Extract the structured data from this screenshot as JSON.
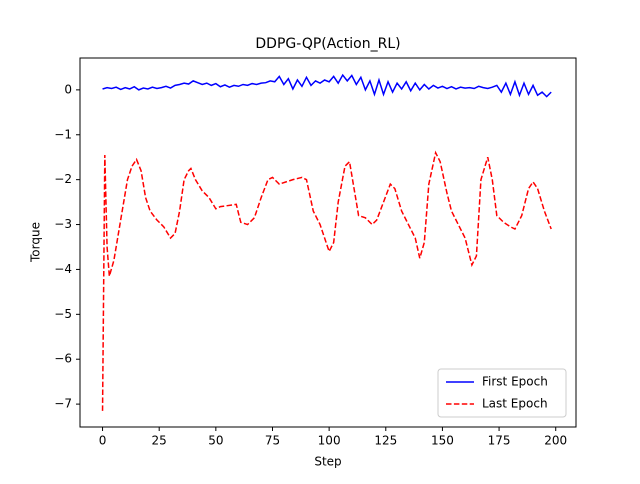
{
  "chart_data": {
    "type": "line",
    "title": "DDPG-QP(Action_RL)",
    "x_label": "Step",
    "y_label": "Torque",
    "xlim": [
      -9.95,
      208.95
    ],
    "ylim": [
      -7.51,
      0.71
    ],
    "xticks": [
      0,
      25,
      50,
      75,
      100,
      125,
      150,
      175,
      200
    ],
    "yticks": [
      0,
      {
        "value": -1,
        "label": "−1"
      },
      {
        "value": -2,
        "label": "−2"
      },
      {
        "value": -3,
        "label": "−3"
      },
      {
        "value": -4,
        "label": "−4"
      },
      {
        "value": -5,
        "label": "−5"
      },
      {
        "value": -6,
        "label": "−6"
      },
      {
        "value": -7,
        "label": "−7"
      }
    ],
    "grid": false,
    "legend": "lower right",
    "series": [
      {
        "name": "First Epoch",
        "color": "#0000ff",
        "dash": "solid",
        "x": [
          0,
          2,
          4,
          6,
          8,
          10,
          12,
          14,
          16,
          18,
          20,
          22,
          24,
          26,
          28,
          30,
          32,
          34,
          36,
          38,
          40,
          42,
          44,
          46,
          48,
          50,
          52,
          54,
          56,
          58,
          60,
          62,
          64,
          66,
          68,
          70,
          72,
          74,
          76,
          78,
          80,
          82,
          84,
          86,
          88,
          90,
          92,
          94,
          96,
          98,
          100,
          102,
          104,
          106,
          108,
          110,
          112,
          114,
          116,
          118,
          120,
          122,
          124,
          126,
          128,
          130,
          132,
          134,
          136,
          138,
          140,
          142,
          144,
          146,
          148,
          150,
          152,
          154,
          156,
          158,
          160,
          162,
          164,
          166,
          168,
          170,
          172,
          174,
          176,
          178,
          180,
          182,
          184,
          186,
          188,
          190,
          192,
          194,
          196,
          198
        ],
        "values": [
          0.02,
          0.05,
          0.03,
          0.06,
          0.01,
          0.05,
          0.02,
          0.07,
          0.0,
          0.04,
          0.02,
          0.06,
          0.03,
          0.05,
          0.08,
          0.04,
          0.1,
          0.12,
          0.15,
          0.13,
          0.2,
          0.16,
          0.12,
          0.15,
          0.1,
          0.14,
          0.07,
          0.11,
          0.06,
          0.1,
          0.08,
          0.12,
          0.1,
          0.14,
          0.12,
          0.15,
          0.16,
          0.2,
          0.18,
          0.3,
          0.12,
          0.25,
          0.02,
          0.22,
          0.08,
          0.28,
          0.1,
          0.2,
          0.15,
          0.22,
          0.18,
          0.3,
          0.15,
          0.33,
          0.2,
          0.32,
          0.12,
          0.28,
          0.0,
          0.2,
          -0.1,
          0.22,
          -0.1,
          0.18,
          -0.05,
          0.15,
          0.02,
          0.18,
          -0.02,
          0.15,
          0.0,
          0.12,
          0.02,
          0.1,
          0.04,
          0.08,
          0.03,
          0.07,
          0.02,
          0.06,
          0.04,
          0.05,
          0.03,
          0.08,
          0.05,
          0.03,
          0.06,
          0.1,
          -0.05,
          0.15,
          -0.1,
          0.18,
          -0.12,
          0.15,
          -0.1,
          0.1,
          -0.12,
          -0.05,
          -0.15,
          -0.05
        ]
      },
      {
        "name": "Last Epoch",
        "color": "#ff0000",
        "dash": "dashed",
        "x": [
          0,
          1,
          2,
          3,
          5,
          8,
          11,
          13,
          15,
          17,
          19,
          21,
          24,
          27,
          30,
          32,
          34,
          36,
          38,
          39,
          41,
          44,
          47,
          50,
          52,
          55,
          59,
          61,
          64,
          67,
          70,
          73,
          75,
          78,
          81,
          84,
          88,
          90,
          93,
          96,
          98,
          100,
          102,
          104,
          107,
          109,
          111,
          113,
          116,
          119,
          121,
          124,
          127,
          129,
          132,
          135,
          138,
          140,
          142,
          144,
          147,
          149,
          152,
          154,
          157,
          160,
          163,
          165,
          167,
          170,
          172,
          174,
          177,
          180,
          182,
          185,
          188,
          190,
          192,
          195,
          198
        ],
        "values": [
          -7.15,
          -1.45,
          -3.5,
          -4.15,
          -3.8,
          -2.9,
          -2.0,
          -1.7,
          -1.55,
          -1.8,
          -2.4,
          -2.7,
          -2.9,
          -3.05,
          -3.3,
          -3.2,
          -2.7,
          -2.0,
          -1.8,
          -1.75,
          -2.0,
          -2.25,
          -2.4,
          -2.65,
          -2.6,
          -2.58,
          -2.55,
          -2.95,
          -3.0,
          -2.85,
          -2.4,
          -2.0,
          -1.95,
          -2.1,
          -2.05,
          -2.0,
          -1.95,
          -2.0,
          -2.7,
          -3.0,
          -3.3,
          -3.6,
          -3.4,
          -2.5,
          -1.7,
          -1.6,
          -2.2,
          -2.8,
          -2.85,
          -3.0,
          -2.9,
          -2.5,
          -2.1,
          -2.2,
          -2.7,
          -3.0,
          -3.3,
          -3.75,
          -3.4,
          -2.1,
          -1.4,
          -1.6,
          -2.3,
          -2.7,
          -3.0,
          -3.3,
          -3.9,
          -3.7,
          -2.0,
          -1.5,
          -2.0,
          -2.8,
          -2.95,
          -3.05,
          -3.1,
          -2.8,
          -2.2,
          -2.05,
          -2.2,
          -2.7,
          -3.1
        ]
      }
    ]
  }
}
